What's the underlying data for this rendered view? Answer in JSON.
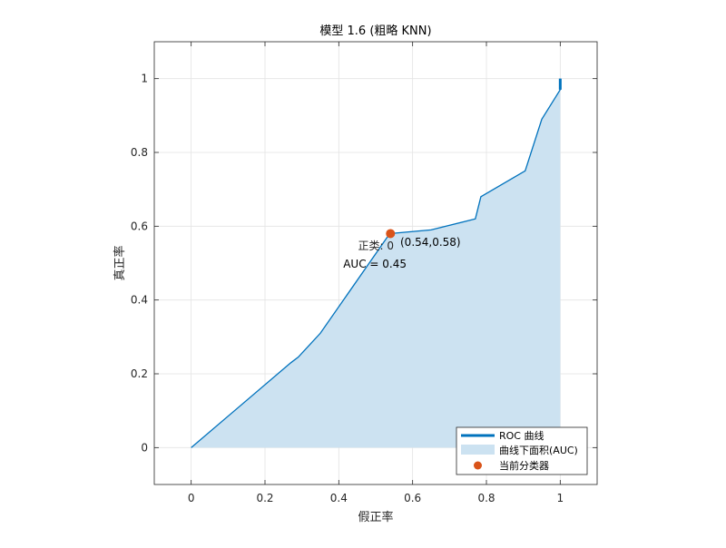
{
  "chart_data": {
    "type": "area",
    "title": "模型 1.6 (粗略 KNN)",
    "xlabel": "假正率",
    "ylabel": "真正率",
    "xlim": [
      -0.1,
      1.1
    ],
    "ylim": [
      -0.1,
      1.1
    ],
    "xticks": [
      0,
      0.2,
      0.4,
      0.6,
      0.8,
      1
    ],
    "yticks": [
      0,
      0.2,
      0.4,
      0.6,
      0.8,
      1
    ],
    "xtick_labels": [
      "0",
      "0.2",
      "0.4",
      "0.6",
      "0.8",
      "1"
    ],
    "ytick_labels": [
      "0",
      "0.2",
      "0.4",
      "0.6",
      "0.8",
      "1"
    ],
    "grid": true,
    "legend_position": "bottom-right",
    "series": [
      {
        "name": "ROC 曲线",
        "kind": "line",
        "color": "#0072BD",
        "x": [
          0,
          0.27,
          0.29,
          0.35,
          0.538,
          0.65,
          0.77,
          0.785,
          0.905,
          0.95,
          1.0,
          1.0
        ],
        "y": [
          0,
          0.23,
          0.245,
          0.31,
          0.58,
          0.59,
          0.62,
          0.68,
          0.75,
          0.89,
          0.97,
          1.0
        ]
      },
      {
        "name": "曲线下面积(AUC)",
        "kind": "area",
        "color": "#CCE2F1"
      },
      {
        "name": "当前分类器",
        "kind": "point",
        "color": "#D95319",
        "x": [
          0.54
        ],
        "y": [
          0.58
        ]
      }
    ],
    "annotations": {
      "point_label": "(0.54,0.58)",
      "positive_class": "正类: 0",
      "auc": "AUC = 0.45"
    }
  }
}
